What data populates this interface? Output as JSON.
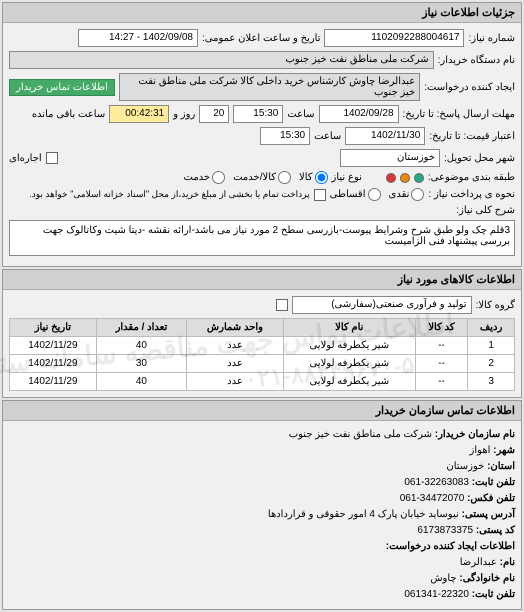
{
  "header": {
    "title": "جزئیات اطلاعات نیاز"
  },
  "info": {
    "number_label": "شماره نیاز:",
    "number_value": "1102092288004617",
    "datetime_label": "تاریخ و ساعت اعلان عمومی:",
    "datetime_value": "1402/09/08 - 14:27",
    "buyer_org_label": "نام دستگاه خریدار:",
    "buyer_org_value": "شرکت ملی مناطق نفت خیز جنوب",
    "creator_label": "ایجاد کننده درخواست:",
    "creator_value": "عبدالرضا چاوش  کارشناس خرید داخلی کالا شرکت ملی مناطق نفت خیز جنوب",
    "contact_btn": "اطلاعات تماس خریدار",
    "deadline_label": "مهلت ارسال پاسخ: تا تاریخ:",
    "deadline_date": "1402/09/28",
    "time_label": "ساعت",
    "deadline_time": "15:30",
    "remain_days": "20",
    "remain_days_label": "روز و",
    "remain_time": "00:42:31",
    "remain_label": "ساعت باقی مانده",
    "valid_label": "اعتبار قیمت: تا تاریخ:",
    "valid_date": "1402/11/30",
    "valid_time": "15:30",
    "delivery_city_label": "شهر محل تحویل:",
    "delivery_city": "خوزستان",
    "rental_label": "اجاره‌ای",
    "budget_label": "طبقه بندی موضوعی:",
    "need_label": "نوع نیاز",
    "goods": "کالا",
    "goods_service": "کالا/خدمت",
    "service": "خدمت",
    "payment_label": "نحوه ی پرداخت نیاز :",
    "cash": "نقدی",
    "installment": "اقساطی",
    "payment_note": "پرداخت تمام یا بخشی از مبلغ خرید،از محل \"اسناد خزانه اسلامی\" خواهد بود.",
    "desc_label": "شرح کلی نیاز:",
    "desc_text": "3قلم چک ولو طبق شرح وشرایط پیوست-بازرسی سطح 2 مورد نیاز می باشد-ارائه نقشه -دیتا شیت وکاتالوک جهت بررسی پیشنهاد فنی الزامیست"
  },
  "goods_section": {
    "title": "اطلاعات کالاهای مورد نیاز",
    "group_label": "گروه کالا:",
    "group_value": "تولید و فرآوری صنعتی(سفارشی)",
    "columns": [
      "ردیف",
      "کد کالا",
      "نام کالا",
      "واحد شمارش",
      "تعداد / مقدار",
      "تاریخ نیاز"
    ],
    "rows": [
      [
        "1",
        "--",
        "شیر یکطرفه لولایی",
        "عدد",
        "40",
        "1402/11/29"
      ],
      [
        "2",
        "--",
        "شیر یکطرفه لولایی",
        "عدد",
        "30",
        "1402/11/29"
      ],
      [
        "3",
        "--",
        "شیر یکطرفه لولایی",
        "عدد",
        "40",
        "1402/11/29"
      ]
    ],
    "watermark": "اطلاعات تماس جهت مناقصه سامانه ستاد",
    "phone_wm": "۰۲۱-۸۸۳۴۹۶۷۰-۵"
  },
  "contact": {
    "title": "اطلاعات تماس سازمان خریدار",
    "org_label": "نام سازمان خریدار:",
    "org_value": "شرکت ملی مناطق نفت خیز جنوب",
    "city_label": "شهر:",
    "city_value": "اهواز",
    "province_label": "استان:",
    "province_value": "خوزستان",
    "phone_label": "تلفن ثابت:",
    "phone_value": "32263083-061",
    "fax_label": "تلفن فکس:",
    "fax_value": "34472070-061",
    "address_label": "آدرس پستی:",
    "address_value": "نیوساید خیابان پارک 4 امور حقوقی و قراردادها",
    "postal_label": "کد پستی:",
    "postal_value": "6173873375",
    "creator_section": "اطلاعات ایجاد کننده درخواست:",
    "name_label": "نام:",
    "name_value": "عبدالرضا",
    "lastname_label": "نام خانوادگی:",
    "lastname_value": "چاوش",
    "phone2_label": "تلفن ثابت:",
    "phone2_value": "22320-061341"
  },
  "colors": {
    "dot_green": "#2a8",
    "dot_orange": "#e80",
    "dot_red": "#d33",
    "highlight": "#ffeb99"
  }
}
